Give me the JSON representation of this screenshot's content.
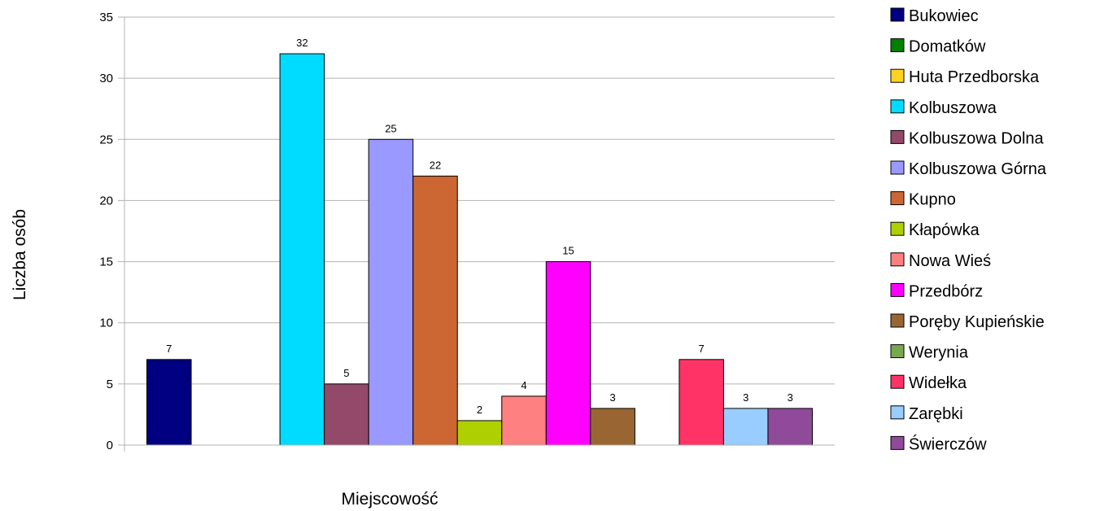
{
  "chart_data": {
    "type": "bar",
    "xlabel": "Miejscowość",
    "ylabel": "Liczba osób",
    "ylim": [
      0,
      35
    ],
    "yticks": [
      0,
      5,
      10,
      15,
      20,
      25,
      30,
      35
    ],
    "grid": true,
    "legend_position": "right",
    "series": [
      {
        "name": "Bukowiec",
        "value": 7,
        "color": "#000080"
      },
      {
        "name": "Domatków",
        "value": 0,
        "color": "#008000"
      },
      {
        "name": "Huta Przedborska",
        "value": 0,
        "color": "#ffd320"
      },
      {
        "name": "Kolbuszowa",
        "value": 32,
        "color": "#00dcff"
      },
      {
        "name": "Kolbuszowa Dolna",
        "value": 5,
        "color": "#934969"
      },
      {
        "name": "Kolbuszowa Górna",
        "value": 25,
        "color": "#9999ff"
      },
      {
        "name": "Kupno",
        "value": 22,
        "color": "#cc6633"
      },
      {
        "name": "Kłapówka",
        "value": 2,
        "color": "#aed000"
      },
      {
        "name": "Nowa Wieś",
        "value": 4,
        "color": "#ff8080"
      },
      {
        "name": "Przedbórz",
        "value": 15,
        "color": "#ff00ff"
      },
      {
        "name": "Poręby Kupieńskie",
        "value": 3,
        "color": "#996633"
      },
      {
        "name": "Werynia",
        "value": 0,
        "color": "#77a84e"
      },
      {
        "name": "Widełka",
        "value": 7,
        "color": "#ff3366"
      },
      {
        "name": "Zarębki",
        "value": 3,
        "color": "#99ccff"
      },
      {
        "name": "Świerczów",
        "value": 3,
        "color": "#8f4a9a"
      }
    ]
  }
}
